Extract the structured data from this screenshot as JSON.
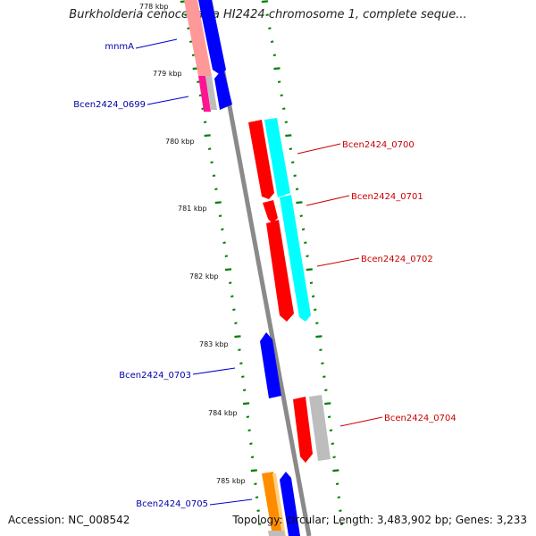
{
  "title": "Burkholderia cenocepacia HI2424 chromosome 1, complete seque...",
  "footer": {
    "accession": "Accession: NC_008542",
    "topology": "Topology: circular; Length: 3,483,902 bp; Genes: 3,233"
  },
  "ticks": [
    "778 kbp",
    "779 kbp",
    "780 kbp",
    "781 kbp",
    "782 kbp",
    "783 kbp",
    "784 kbp",
    "785 kbp"
  ],
  "gene_labels": [
    {
      "name": "mnmA",
      "strand": "reverse",
      "color": "#0000aa"
    },
    {
      "name": "Bcen2424_0699",
      "strand": "reverse",
      "color": "#0000aa"
    },
    {
      "name": "Bcen2424_0700",
      "strand": "forward",
      "color": "#cc0000"
    },
    {
      "name": "Bcen2424_0701",
      "strand": "forward",
      "color": "#cc0000"
    },
    {
      "name": "Bcen2424_0702",
      "strand": "forward",
      "color": "#cc0000"
    },
    {
      "name": "Bcen2424_0703",
      "strand": "reverse",
      "color": "#0000aa"
    },
    {
      "name": "Bcen2424_0704",
      "strand": "forward",
      "color": "#cc0000"
    },
    {
      "name": "Bcen2424_0705",
      "strand": "reverse",
      "color": "#0000aa"
    }
  ],
  "colors": {
    "backbone": "#8a8a8a",
    "forward_cds": "#ff0000",
    "reverse_cds": "#0000ff",
    "cyan_feature": "#00ffff",
    "gray_feature": "#bdbdbd",
    "pink_feature": "#ff9999",
    "magenta_feature": "#ff1493",
    "orange_feature": "#ff8c00",
    "tick_dash": "#008000"
  }
}
